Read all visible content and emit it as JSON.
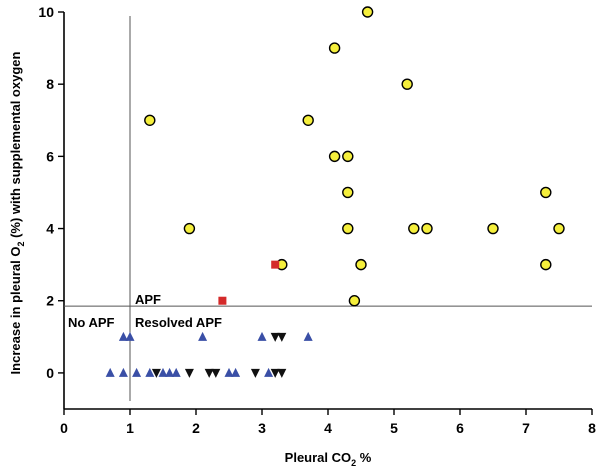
{
  "chart_data": {
    "type": "scatter",
    "xlabel_prefix": "Pleural CO",
    "xlabel_sub": "2",
    "xlabel_suffix": " %",
    "ylabel_prefix": "Increase in pleural O",
    "ylabel_sub": "2",
    "ylabel_suffix": " (%) with supplemental oxygen",
    "xlim": [
      0,
      8
    ],
    "ylim": [
      -1,
      10
    ],
    "x_ticks": [
      0,
      1,
      2,
      3,
      4,
      5,
      6,
      7,
      8
    ],
    "y_ticks": [
      0,
      2,
      4,
      6,
      8,
      10
    ],
    "x_tick_labels": [
      "0",
      "1",
      "2",
      "3",
      "4",
      "5",
      "6",
      "7",
      "8"
    ],
    "y_tick_labels": [
      "0",
      "2",
      "4",
      "6",
      "8",
      "10"
    ],
    "grid": false,
    "reference_lines": {
      "vertical_x": 1.0,
      "horizontal_y": 1.85
    },
    "region_labels": {
      "apf": "APF",
      "no_apf": "No APF",
      "resolved_apf": "Resolved APF"
    },
    "series": [
      {
        "marker": "circle",
        "color": "#f5ef3c",
        "points": [
          [
            4.6,
            10
          ],
          [
            4.1,
            9
          ],
          [
            5.2,
            8
          ],
          [
            1.3,
            7
          ],
          [
            3.7,
            7
          ],
          [
            4.1,
            6
          ],
          [
            4.3,
            6
          ],
          [
            4.3,
            5
          ],
          [
            7.3,
            5
          ],
          [
            1.9,
            4
          ],
          [
            4.3,
            4
          ],
          [
            5.3,
            4
          ],
          [
            5.5,
            4
          ],
          [
            6.5,
            4
          ],
          [
            7.5,
            4
          ],
          [
            3.3,
            3
          ],
          [
            4.5,
            3
          ],
          [
            7.3,
            3
          ],
          [
            4.4,
            2
          ]
        ]
      },
      {
        "marker": "square",
        "color": "#d42a2a",
        "points": [
          [
            3.2,
            3
          ],
          [
            2.4,
            2
          ]
        ]
      },
      {
        "marker": "triangle-up",
        "color": "#3a4fa6",
        "points": [
          [
            0.9,
            1
          ],
          [
            1.0,
            1
          ],
          [
            2.1,
            1
          ],
          [
            3.0,
            1
          ],
          [
            3.7,
            1
          ],
          [
            0.7,
            0
          ],
          [
            0.9,
            0
          ],
          [
            1.1,
            0
          ],
          [
            1.3,
            0
          ],
          [
            1.5,
            0
          ],
          [
            1.6,
            0
          ],
          [
            1.7,
            0
          ],
          [
            2.5,
            0
          ],
          [
            2.6,
            0
          ],
          [
            3.1,
            0
          ]
        ]
      },
      {
        "marker": "triangle-down",
        "color": "#111111",
        "points": [
          [
            3.2,
            1
          ],
          [
            3.3,
            1
          ],
          [
            1.4,
            0
          ],
          [
            1.9,
            0
          ],
          [
            2.2,
            0
          ],
          [
            2.3,
            0
          ],
          [
            2.9,
            0
          ],
          [
            3.2,
            0
          ],
          [
            3.3,
            0
          ]
        ]
      }
    ]
  }
}
